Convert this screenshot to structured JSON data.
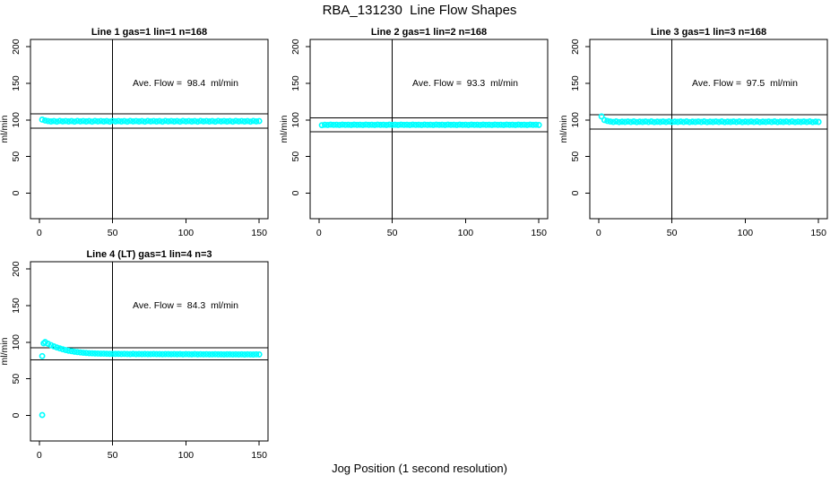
{
  "page": {
    "title": "RBA_131230  Line Flow Shapes",
    "xlabel": "Jog Position (1 second resolution)",
    "background_color": "#ffffff",
    "axis_color": "#000000",
    "marker_color": "#00ffff"
  },
  "chart_data": [
    {
      "type": "scatter",
      "title": "Line 1 gas=1 lin=1 n=168",
      "annotation": "Ave. Flow =  98.4  ml/min",
      "ave_flow_ml_min": 98.4,
      "n": 168,
      "ylabel": "ml/min",
      "xlim": [
        -6,
        156
      ],
      "ylim": [
        -35,
        210
      ],
      "x_ticks": [
        0,
        50,
        100,
        150
      ],
      "y_ticks": [
        0,
        50,
        100,
        150,
        200
      ],
      "hlines": [
        108.2,
        88.6
      ],
      "vlines": [
        50
      ],
      "marker_color": "#00ffff",
      "x_start": 2,
      "x_step": 2,
      "outliers": [],
      "series_y": [
        100.4,
        99.2,
        98.5,
        97.9,
        98.4,
        97.7,
        98.6,
        98.0,
        98.5,
        97.9,
        98.4,
        97.7,
        98.6,
        98.0,
        98.5,
        97.9,
        98.4,
        97.7,
        98.6,
        98.0,
        98.5,
        97.9,
        98.4,
        97.7,
        98.6,
        98.0,
        98.5,
        97.9,
        98.4,
        97.7,
        98.6,
        98.0,
        98.5,
        97.9,
        98.4,
        97.7,
        98.6,
        98.0,
        98.5,
        97.9,
        98.4,
        97.7,
        98.6,
        98.0,
        98.5,
        97.9,
        98.4,
        97.7,
        98.6,
        98.0,
        98.5,
        97.9,
        98.4,
        97.7,
        98.6,
        98.0,
        98.5,
        97.9,
        98.4,
        97.7,
        98.6,
        98.0,
        98.5,
        97.9,
        98.4,
        97.7,
        98.6,
        98.0,
        98.5,
        97.9,
        98.4,
        97.7,
        98.6,
        98.0,
        98.5
      ]
    },
    {
      "type": "scatter",
      "title": "Line 2 gas=1 lin=2 n=168",
      "annotation": "Ave. Flow =  93.3  ml/min",
      "ave_flow_ml_min": 93.3,
      "n": 168,
      "ylabel": "ml/min",
      "xlim": [
        -6,
        156
      ],
      "ylim": [
        -35,
        210
      ],
      "x_ticks": [
        0,
        50,
        100,
        150
      ],
      "y_ticks": [
        0,
        50,
        100,
        150,
        200
      ],
      "hlines": [
        102.6,
        84.0
      ],
      "vlines": [
        50
      ],
      "marker_color": "#00ffff",
      "x_start": 2,
      "x_step": 2,
      "outliers": [],
      "series_y": [
        92.8,
        93.4,
        93.1,
        93.5,
        93.2,
        93.4,
        93.1,
        93.5,
        93.2,
        93.4,
        93.1,
        93.5,
        93.2,
        93.4,
        93.1,
        93.5,
        93.2,
        93.4,
        93.1,
        93.5,
        93.2,
        93.4,
        93.1,
        93.5,
        93.2,
        93.4,
        93.1,
        93.5,
        93.2,
        93.4,
        93.1,
        93.5,
        93.2,
        93.4,
        93.1,
        93.5,
        93.2,
        93.4,
        93.1,
        93.5,
        93.2,
        93.4,
        93.1,
        93.5,
        93.2,
        93.4,
        93.1,
        93.5,
        93.2,
        93.4,
        93.1,
        93.5,
        93.2,
        93.4,
        93.1,
        93.5,
        93.2,
        93.4,
        93.1,
        93.5,
        93.2,
        93.4,
        93.1,
        93.5,
        93.2,
        93.4,
        93.1,
        93.5,
        93.2,
        93.4,
        93.1,
        93.5,
        93.2,
        93.4,
        93.1
      ]
    },
    {
      "type": "scatter",
      "title": "Line 3 gas=1 lin=3 n=168",
      "annotation": "Ave. Flow =  97.5  ml/min",
      "ave_flow_ml_min": 97.5,
      "n": 168,
      "ylabel": "ml/min",
      "xlim": [
        -6,
        156
      ],
      "ylim": [
        -35,
        210
      ],
      "x_ticks": [
        0,
        50,
        100,
        150
      ],
      "y_ticks": [
        0,
        50,
        100,
        150,
        200
      ],
      "hlines": [
        107.3,
        87.8
      ],
      "vlines": [
        50
      ],
      "marker_color": "#00ffff",
      "x_start": 2,
      "x_step": 2,
      "outliers": [],
      "series_y": [
        104.8,
        99.8,
        98.6,
        97.8,
        97.2,
        97.9,
        97.1,
        97.6,
        97.3,
        97.8,
        97.2,
        97.9,
        97.1,
        97.6,
        97.3,
        97.8,
        97.2,
        97.9,
        97.1,
        97.6,
        97.3,
        97.8,
        97.2,
        97.9,
        97.1,
        97.6,
        97.3,
        97.8,
        97.2,
        97.9,
        97.1,
        97.6,
        97.3,
        97.8,
        97.2,
        97.9,
        97.1,
        97.6,
        97.3,
        97.8,
        97.2,
        97.9,
        97.1,
        97.6,
        97.3,
        97.8,
        97.2,
        97.9,
        97.1,
        97.6,
        97.3,
        97.8,
        97.2,
        97.9,
        97.1,
        97.6,
        97.3,
        97.8,
        97.2,
        97.9,
        97.1,
        97.6,
        97.3,
        97.8,
        97.2,
        97.9,
        97.1,
        97.6,
        97.3,
        97.8,
        97.2,
        97.9,
        97.1,
        97.6,
        97.3
      ]
    },
    {
      "type": "scatter",
      "title": "Line 4 (LT) gas=1 lin=4 n=3",
      "annotation": "Ave. Flow =  84.3  ml/min",
      "ave_flow_ml_min": 84.3,
      "n": 3,
      "ylabel": "ml/min",
      "xlim": [
        -6,
        156
      ],
      "ylim": [
        -35,
        210
      ],
      "x_ticks": [
        0,
        50,
        100,
        150
      ],
      "y_ticks": [
        0,
        50,
        100,
        150,
        200
      ],
      "hlines": [
        92.7,
        75.9
      ],
      "vlines": [
        50
      ],
      "marker_color": "#00ffff",
      "x_start": 4,
      "x_step": 2,
      "outliers": [
        [
          2,
          0.5
        ],
        [
          2,
          81
        ],
        [
          3,
          98.5
        ]
      ],
      "series_y": [
        100.2,
        97.9,
        96.0,
        94.3,
        92.8,
        91.5,
        90.3,
        89.3,
        88.4,
        87.7,
        87.0,
        86.5,
        86.0,
        85.6,
        85.3,
        85.0,
        84.8,
        84.6,
        84.5,
        84.4,
        84.3,
        84.2,
        84.1,
        84.1,
        84.0,
        84.0,
        83.9,
        84.1,
        83.9,
        83.8,
        84.0,
        83.8,
        83.9,
        83.7,
        83.9,
        83.8,
        83.7,
        83.9,
        83.7,
        83.8,
        83.6,
        83.8,
        83.7,
        83.6,
        83.8,
        83.6,
        83.7,
        83.5,
        83.7,
        83.6,
        83.5,
        83.7,
        83.5,
        83.6,
        83.4,
        83.6,
        83.5,
        83.4,
        83.6,
        83.4,
        83.5,
        83.3,
        83.5,
        83.4,
        83.3,
        83.5,
        83.3,
        83.4,
        83.2,
        83.4,
        83.3,
        83.2,
        83.4,
        83.3
      ]
    }
  ]
}
